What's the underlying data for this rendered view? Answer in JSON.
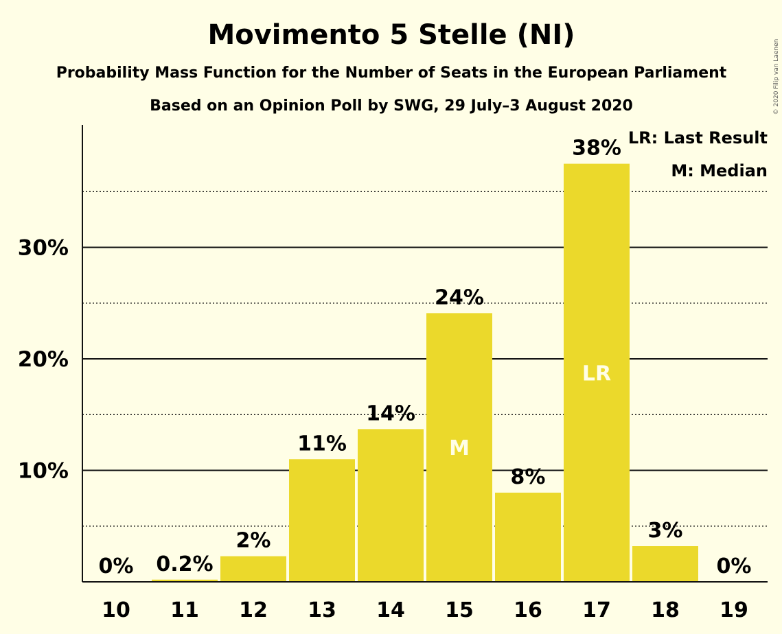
{
  "chart_data": {
    "type": "bar",
    "title": "Movimento 5 Stelle (NI)",
    "subtitle_line1": "Probability Mass Function for the Number of Seats in the European Parliament",
    "subtitle_line2": "Based on an Opinion Poll by SWG, 29 July–3 August 2020",
    "copyright": "© 2020 Filip van Laenen",
    "categories": [
      "10",
      "11",
      "12",
      "13",
      "14",
      "15",
      "16",
      "17",
      "18",
      "19"
    ],
    "values": [
      0,
      0.2,
      2.3,
      11,
      13.7,
      24.1,
      8.0,
      37.5,
      3.2,
      0
    ],
    "value_labels": [
      "0%",
      "0.2%",
      "2%",
      "11%",
      "14%",
      "24%",
      "8%",
      "38%",
      "3%",
      "0%"
    ],
    "inner_labels": [
      "",
      "",
      "",
      "",
      "",
      "M",
      "",
      "LR",
      "",
      ""
    ],
    "yticks": [
      10,
      20,
      30
    ],
    "ytick_labels": [
      "10%",
      "20%",
      "30%"
    ],
    "minor_gridlines": [
      5,
      15,
      25,
      35
    ],
    "ylim": [
      0,
      41
    ],
    "legend": [
      "LR: Last Result",
      "M: Median"
    ],
    "legend_position": "top-right",
    "bar_color": "#EBD92B"
  }
}
